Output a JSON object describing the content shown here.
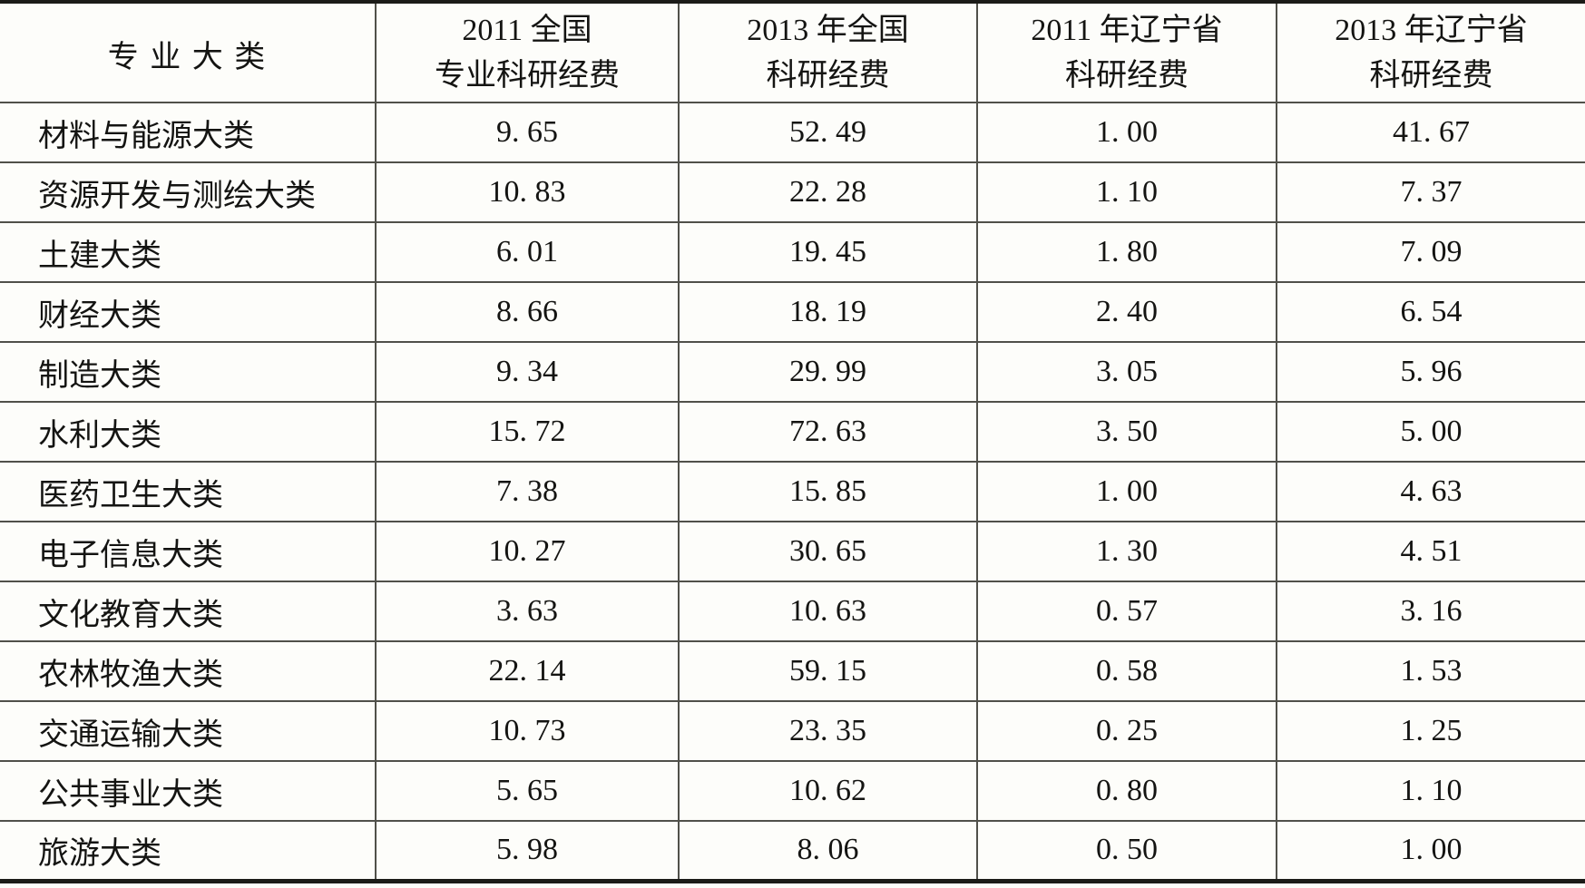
{
  "table": {
    "columns": [
      {
        "label_line1": "专 业 大 类",
        "label_line2": ""
      },
      {
        "label_line1": "2011 全国",
        "label_line2": "专业科研经费"
      },
      {
        "label_line1": "2013 年全国",
        "label_line2": "科研经费"
      },
      {
        "label_line1": "2011 年辽宁省",
        "label_line2": "科研经费"
      },
      {
        "label_line1": "2013 年辽宁省",
        "label_line2": "科研经费"
      }
    ],
    "rows": [
      {
        "category": "材料与能源大类",
        "values": [
          "9. 65",
          "52. 49",
          "1. 00",
          "41. 67"
        ]
      },
      {
        "category": "资源开发与测绘大类",
        "values": [
          "10. 83",
          "22. 28",
          "1. 10",
          "7. 37"
        ]
      },
      {
        "category": "土建大类",
        "values": [
          "6. 01",
          "19. 45",
          "1. 80",
          "7. 09"
        ]
      },
      {
        "category": "财经大类",
        "values": [
          "8. 66",
          "18. 19",
          "2. 40",
          "6. 54"
        ]
      },
      {
        "category": "制造大类",
        "values": [
          "9. 34",
          "29. 99",
          "3. 05",
          "5. 96"
        ]
      },
      {
        "category": "水利大类",
        "values": [
          "15. 72",
          "72. 63",
          "3. 50",
          "5. 00"
        ]
      },
      {
        "category": "医药卫生大类",
        "values": [
          "7. 38",
          "15. 85",
          "1. 00",
          "4. 63"
        ]
      },
      {
        "category": "电子信息大类",
        "values": [
          "10. 27",
          "30. 65",
          "1. 30",
          "4. 51"
        ]
      },
      {
        "category": "文化教育大类",
        "values": [
          "3. 63",
          "10. 63",
          "0. 57",
          "3. 16"
        ]
      },
      {
        "category": "农林牧渔大类",
        "values": [
          "22. 14",
          "59. 15",
          "0. 58",
          "1. 53"
        ]
      },
      {
        "category": "交通运输大类",
        "values": [
          "10. 73",
          "23. 35",
          "0. 25",
          "1. 25"
        ]
      },
      {
        "category": "公共事业大类",
        "values": [
          "5. 65",
          "10. 62",
          "0. 80",
          "1. 10"
        ]
      },
      {
        "category": "旅游大类",
        "values": [
          "5. 98",
          "8. 06",
          "0. 50",
          "1. 00"
        ]
      }
    ]
  }
}
